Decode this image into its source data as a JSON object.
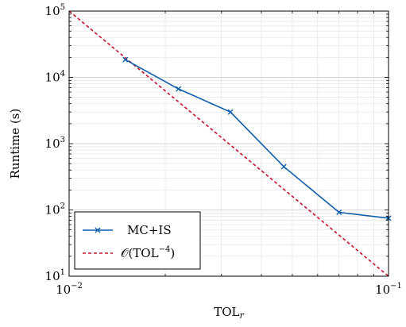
{
  "chart_data": {
    "type": "line",
    "xscale": "log",
    "yscale": "log",
    "xlim": [
      0.01,
      0.1
    ],
    "ylim": [
      10,
      100000
    ],
    "grid": true,
    "legend_position": "bottom-left",
    "xlabel": {
      "base": "TOL",
      "subscript": "r"
    },
    "ylabel": "Runtime (s)",
    "x_ticks": [
      {
        "value": 0.01,
        "base": "10",
        "exp": "−2"
      },
      {
        "value": 0.1,
        "base": "10",
        "exp": "−1"
      }
    ],
    "y_ticks": [
      {
        "value": 10,
        "base": "10",
        "exp": "1"
      },
      {
        "value": 100,
        "base": "10",
        "exp": "2"
      },
      {
        "value": 1000,
        "base": "10",
        "exp": "3"
      },
      {
        "value": 10000,
        "base": "10",
        "exp": "4"
      },
      {
        "value": 100000,
        "base": "10",
        "exp": "5"
      }
    ],
    "series": [
      {
        "name": "MC+IS",
        "color": "#0a5ea8",
        "style": "solid",
        "marker": "x",
        "x": [
          0.015,
          0.022,
          0.032,
          0.047,
          0.07,
          0.1
        ],
        "y": [
          18500,
          6700,
          3000,
          450,
          92,
          75
        ]
      },
      {
        "name": "𝒪(TOL−4)",
        "legend_label": {
          "prefix": "𝒪(TOL",
          "sup": "−4",
          "suffix": ")"
        },
        "color": "#c8102e",
        "style": "dashed",
        "marker": "none",
        "x": [
          0.01,
          0.1
        ],
        "y": [
          100000,
          10
        ]
      }
    ]
  }
}
